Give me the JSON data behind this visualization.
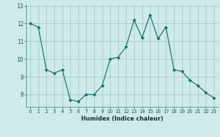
{
  "x": [
    0,
    1,
    2,
    3,
    4,
    5,
    6,
    7,
    8,
    9,
    10,
    11,
    12,
    13,
    14,
    15,
    16,
    17,
    18,
    19,
    20,
    21,
    22,
    23
  ],
  "y": [
    12.0,
    11.8,
    9.4,
    9.2,
    9.4,
    7.7,
    7.6,
    8.0,
    8.0,
    8.5,
    10.0,
    10.1,
    10.7,
    12.2,
    11.2,
    12.5,
    11.15,
    11.8,
    9.4,
    9.3,
    8.8,
    8.5,
    8.1,
    7.8
  ],
  "xlabel": "Humidex (Indice chaleur)",
  "bg_color": "#ceeaea",
  "grid_color": "#aacece",
  "line_color": "#1e6e6e",
  "marker_color": "#1e6e6e",
  "yticks": [
    8,
    9,
    10,
    11,
    12,
    13
  ],
  "xticks": [
    0,
    1,
    2,
    3,
    4,
    5,
    6,
    7,
    8,
    9,
    10,
    11,
    12,
    13,
    14,
    15,
    16,
    17,
    18,
    19,
    20,
    21,
    22,
    23
  ],
  "ylim": [
    7.3,
    13.1
  ],
  "xlim": [
    -0.5,
    23.5
  ]
}
